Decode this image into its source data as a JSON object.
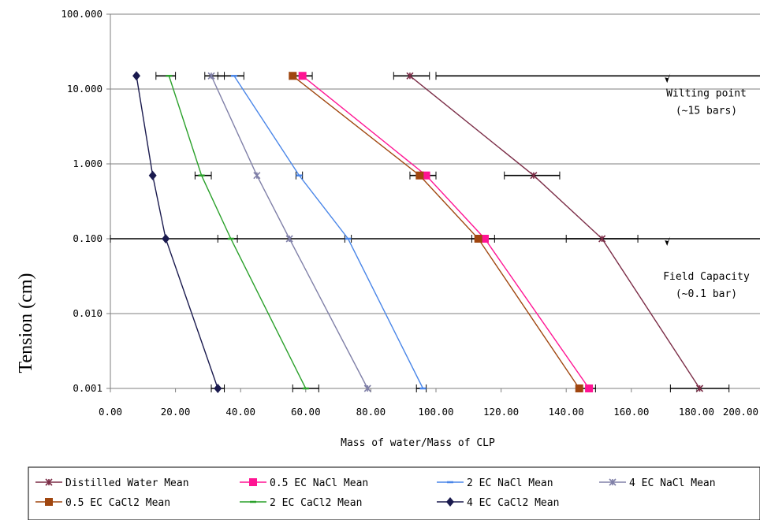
{
  "chart_data": {
    "type": "line",
    "title": "",
    "xlabel": "Mass of water/Mass of CLP",
    "ylabel": "Tension (cm)",
    "x_ticks": [
      "0.00",
      "20.00",
      "40.00",
      "60.00",
      "80.00",
      "100.00",
      "120.00",
      "140.00",
      "160.00",
      "180.00",
      "200.00"
    ],
    "y_ticks": [
      "0.001",
      "0.010",
      "0.100",
      "1.000",
      "10.000",
      "100.000"
    ],
    "xlim": [
      0,
      200
    ],
    "ylim": [
      0.001,
      100
    ],
    "y_scale": "log",
    "grid": "horizontal",
    "legend_position": "bottom",
    "y_levels": [
      15,
      0.7,
      0.1,
      0.001
    ],
    "series": [
      {
        "name": "Distilled Water Mean",
        "color": "#7b2d47",
        "marker": "asterisk",
        "x": [
          92,
          130,
          151,
          181
        ]
      },
      {
        "name": "0.5 EC NaCl Mean",
        "color": "#ff1493",
        "marker": "square",
        "x": [
          59,
          97,
          115,
          147
        ]
      },
      {
        "name": "2 EC NaCl Mean",
        "color": "#4a86e8",
        "marker": "dash",
        "x": [
          38,
          58,
          73,
          96
        ]
      },
      {
        "name": "4 EC NaCl Mean",
        "color": "#8080a8",
        "marker": "asterisk",
        "x": [
          31,
          45,
          55,
          79
        ]
      },
      {
        "name": "0.5 EC CaCl2 Mean",
        "color": "#a0460f",
        "marker": "square",
        "x": [
          56,
          95,
          113,
          144
        ]
      },
      {
        "name": "2 EC CaCl2 Mean",
        "color": "#2aa02a",
        "marker": "dash",
        "x": [
          18,
          28,
          37,
          60
        ]
      },
      {
        "name": "4 EC CaCl2 Mean",
        "color": "#1a1a4e",
        "marker": "diamond",
        "x": [
          8,
          13,
          17,
          33
        ]
      }
    ],
    "error_bars": [
      {
        "y": 15,
        "ranges": [
          [
            14,
            20
          ],
          [
            29,
            35
          ],
          [
            33,
            41
          ],
          [
            55,
            62
          ],
          [
            87,
            98
          ],
          [
            100,
            200
          ]
        ]
      },
      {
        "y": 0.7,
        "ranges": [
          [
            26,
            31
          ],
          [
            57,
            59
          ],
          [
            92,
            100
          ],
          [
            121,
            138
          ]
        ]
      },
      {
        "y": 0.1,
        "ranges": [
          [
            0,
            200
          ],
          [
            33,
            39
          ],
          [
            72,
            74
          ],
          [
            111,
            118
          ],
          [
            140,
            162
          ]
        ]
      },
      {
        "y": 0.001,
        "ranges": [
          [
            31,
            35
          ],
          [
            56,
            64
          ],
          [
            94,
            97
          ],
          [
            143,
            149
          ],
          [
            172,
            190
          ]
        ]
      }
    ],
    "annotations": [
      {
        "lines": [
          "Wilting point",
          "(~15 bars)"
        ],
        "arrow_x": 171,
        "arrow_y": 15
      },
      {
        "lines": [
          "Field Capacity",
          "(~0.1 bar)"
        ],
        "arrow_x": 171,
        "arrow_y": 0.1
      }
    ]
  }
}
